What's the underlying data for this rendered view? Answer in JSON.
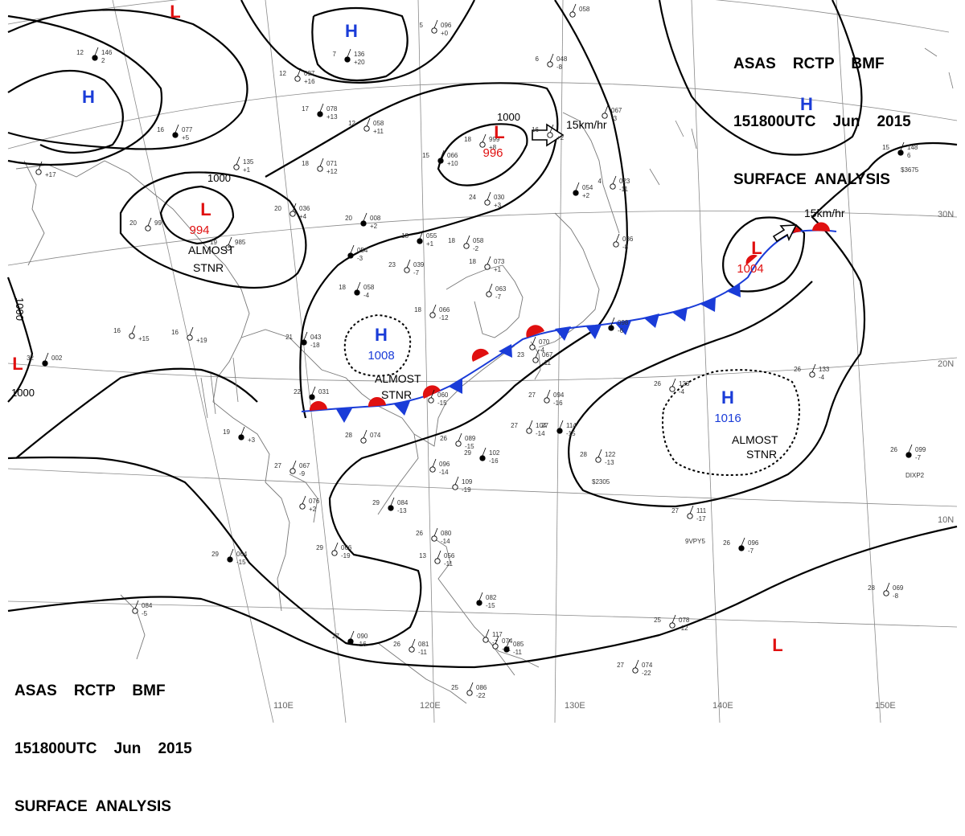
{
  "header_top": {
    "line1": "ASAS    RCTP    BMF",
    "line2": "151800UTC    Jun    2015",
    "line3": "SURFACE  ANALYSIS"
  },
  "header_bottom": {
    "line1": "ASAS    RCTP    BMF",
    "line2": "151800UTC    Jun    2015",
    "line3": "SURFACE  ANALYSIS"
  },
  "colors": {
    "high": "#1a3cd8",
    "low": "#e01010",
    "warm_front": "#e01010",
    "cold_front": "#1a3cd8",
    "isobar": "#000000",
    "grid": "#8a8a8a",
    "coast": "#777777"
  },
  "pressure_centers": [
    {
      "type": "L",
      "value": ""
    },
    {
      "type": "H",
      "value": ""
    },
    {
      "type": "H",
      "value": ""
    },
    {
      "type": "L",
      "value": "994"
    },
    {
      "type": "L",
      "value": "996"
    },
    {
      "type": "H",
      "value": ""
    },
    {
      "type": "L",
      "value": "1004"
    },
    {
      "type": "H",
      "value": "1008"
    },
    {
      "type": "H",
      "value": "1016"
    },
    {
      "type": "L",
      "value": ""
    },
    {
      "type": "L",
      "value": ""
    }
  ],
  "isobar_labels": [
    "1000",
    "1000",
    "1000",
    "1000"
  ],
  "annotations": [
    "ALMOST",
    "STNR",
    "ALMOST",
    "STNR",
    "ALMOST",
    "STNR"
  ],
  "motions": [
    "15km/hr",
    "15km/hr"
  ],
  "lon_labels": [
    "110E",
    "120E",
    "130E",
    "140E",
    "150E"
  ],
  "lat_labels": [
    "30N",
    "20N",
    "10N"
  ],
  "stations": [
    {
      "t": "12",
      "p": "146",
      "d": "2"
    },
    {
      "t": "5",
      "p": "096",
      "d": "+0"
    },
    {
      "t": "",
      "p": "058",
      "d": ""
    },
    {
      "t": "7",
      "p": "136",
      "d": "+20"
    },
    {
      "t": "12",
      "p": "097",
      "d": "+16"
    },
    {
      "t": "6",
      "p": "048",
      "d": "-8"
    },
    {
      "t": "17",
      "p": "078",
      "d": "+13"
    },
    {
      "t": "12",
      "p": "058",
      "d": "+11"
    },
    {
      "t": "18",
      "p": "999",
      "d": "+8"
    },
    {
      "t": "15",
      "p": "066",
      "d": "+10"
    },
    {
      "t": "16",
      "p": "",
      "d": "+2"
    },
    {
      "t": "",
      "p": "067",
      "d": "-3"
    },
    {
      "t": "16",
      "p": "077",
      "d": "+5"
    },
    {
      "t": "",
      "p": "135",
      "d": "+1"
    },
    {
      "t": "18",
      "p": "071",
      "d": "+12"
    },
    {
      "t": "15",
      "p": "148",
      "d": "6"
    },
    {
      "t": "",
      "p": "",
      "d": "+17"
    },
    {
      "t": "24",
      "p": "030",
      "d": "+3"
    },
    {
      "t": "",
      "p": "054",
      "d": "+2"
    },
    {
      "t": "4",
      "p": "023",
      "d": "-11"
    },
    {
      "t": "20",
      "p": "036",
      "d": "+4"
    },
    {
      "t": "20",
      "p": "008",
      "d": "+2"
    },
    {
      "t": "20",
      "p": "99",
      "d": ""
    },
    {
      "t": "19",
      "p": "985",
      "d": ""
    },
    {
      "t": "18",
      "p": "055",
      "d": "+1"
    },
    {
      "t": "18",
      "p": "058",
      "d": "-2"
    },
    {
      "t": "",
      "p": "086",
      "d": "-8"
    },
    {
      "t": "",
      "p": "054",
      "d": "-3"
    },
    {
      "t": "23",
      "p": "039",
      "d": "-7"
    },
    {
      "t": "18",
      "p": "073",
      "d": "+1"
    },
    {
      "t": "18",
      "p": "058",
      "d": "-4"
    },
    {
      "t": "",
      "p": "063",
      "d": "-7"
    },
    {
      "t": "18",
      "p": "066",
      "d": "-12"
    },
    {
      "t": "32",
      "p": "002",
      "d": ""
    },
    {
      "t": "16",
      "p": "",
      "d": "+15"
    },
    {
      "t": "16",
      "p": "",
      "d": "+19"
    },
    {
      "t": "21",
      "p": "043",
      "d": "-18"
    },
    {
      "t": "",
      "p": "070",
      "d": "-4"
    },
    {
      "t": "23",
      "p": "067",
      "d": "-11"
    },
    {
      "t": "",
      "p": "098",
      "d": "-6"
    },
    {
      "t": "26",
      "p": "133",
      "d": "-4"
    },
    {
      "t": "26",
      "p": "123",
      "d": "-4"
    },
    {
      "t": "22",
      "p": "031",
      "d": ""
    },
    {
      "t": "",
      "p": "060",
      "d": "-15"
    },
    {
      "t": "27",
      "p": "094",
      "d": "-16"
    },
    {
      "t": "19",
      "p": "",
      "d": "+3"
    },
    {
      "t": "28",
      "p": "074",
      "d": ""
    },
    {
      "t": "27",
      "p": "104",
      "d": "-14"
    },
    {
      "t": "27",
      "p": "114",
      "d": "-15"
    },
    {
      "t": "26",
      "p": "089",
      "d": "-15"
    },
    {
      "t": "28",
      "p": "122",
      "d": "-13"
    },
    {
      "t": "26",
      "p": "099",
      "d": "-7"
    },
    {
      "t": "27",
      "p": "067",
      "d": "-9"
    },
    {
      "t": "",
      "p": "096",
      "d": "-14"
    },
    {
      "t": "29",
      "p": "102",
      "d": "-16"
    },
    {
      "t": "",
      "p": "109",
      "d": "-19"
    },
    {
      "t": "",
      "p": "076",
      "d": "+2"
    },
    {
      "t": "29",
      "p": "084",
      "d": "-13"
    },
    {
      "t": "27",
      "p": "111",
      "d": "-17"
    },
    {
      "t": "26",
      "p": "080",
      "d": "-14"
    },
    {
      "t": "29",
      "p": "064",
      "d": "-15"
    },
    {
      "t": "29",
      "p": "066",
      "d": "-19"
    },
    {
      "t": "13",
      "p": "056",
      "d": "-11"
    },
    {
      "t": "26",
      "p": "096",
      "d": "-7"
    },
    {
      "t": "28",
      "p": "069",
      "d": "-8"
    },
    {
      "t": "",
      "p": "084",
      "d": "-5"
    },
    {
      "t": "",
      "p": "082",
      "d": "-15"
    },
    {
      "t": "",
      "p": "117",
      "d": "-7"
    },
    {
      "t": "25",
      "p": "078",
      "d": "-12"
    },
    {
      "t": "27",
      "p": "090",
      "d": "-16"
    },
    {
      "t": "26",
      "p": "081",
      "d": "-11"
    },
    {
      "t": "",
      "p": "074",
      "d": "-11"
    },
    {
      "t": "",
      "p": "085",
      "d": "-11"
    },
    {
      "t": "27",
      "p": "074",
      "d": "-22"
    },
    {
      "t": "25",
      "p": "086",
      "d": "-22"
    }
  ],
  "station_codes": [
    "$3675",
    "$2305",
    "DIXP2",
    "9VPY5"
  ]
}
